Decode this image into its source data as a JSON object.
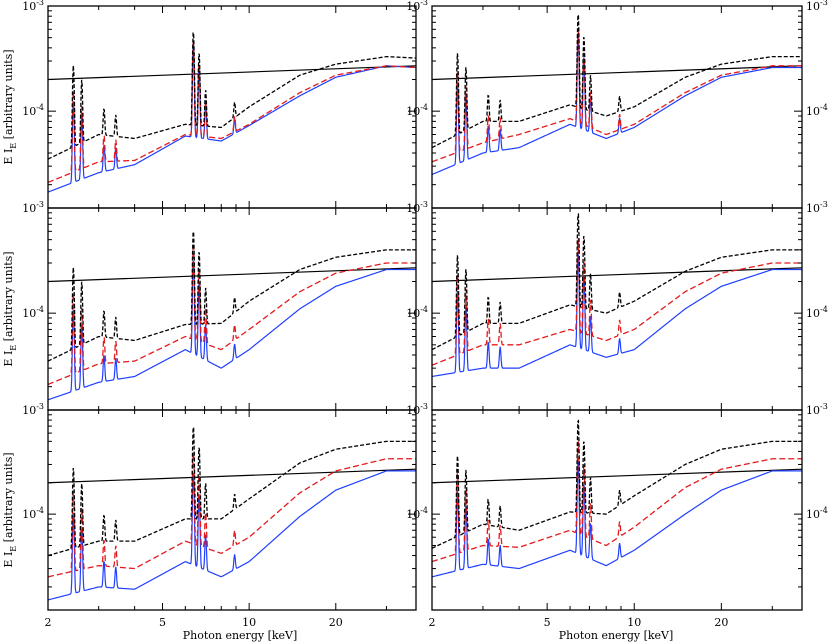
{
  "chart_data": {
    "type": "line",
    "layout": "3 rows x 2 columns, shared axes",
    "xlabel": "Photon energy [keV]",
    "ylabel_main": "E I",
    "ylabel_sub": "E",
    "ylabel_unit": "[arbitrary units]",
    "xscale": "log",
    "yscale": "log",
    "xlim": [
      2,
      38
    ],
    "ylim": [
      1.2e-05,
      0.001
    ],
    "x_ticks": [
      {
        "value": 2,
        "label": "2"
      },
      {
        "value": 5,
        "label": "5"
      },
      {
        "value": 10,
        "label": "10"
      },
      {
        "value": 20,
        "label": "20"
      }
    ],
    "y_ticks": [
      {
        "value": 0.0001,
        "mantissa": "10",
        "exponent": "-4"
      },
      {
        "value": 0.001,
        "mantissa": "10",
        "exponent": "-3"
      }
    ],
    "grid": false,
    "legend": "none",
    "colors": {
      "black": "#000000",
      "red": "#e41a1c",
      "blue": "#1f3fff"
    },
    "incident_continuum": {
      "x": [
        2,
        38
      ],
      "y": [
        0.0002,
        0.00027
      ]
    },
    "panels": [
      {
        "row": 0,
        "col": 0,
        "black_x": [
          2,
          3,
          4,
          6,
          8,
          10,
          15,
          20,
          30,
          38
        ],
        "black_y": [
          3.5e-05,
          6e-05,
          5.5e-05,
          7.5e-05,
          7e-05,
          0.00011,
          0.00022,
          0.00028,
          0.00033,
          0.00032
        ],
        "red_x": [
          2,
          3,
          4,
          6,
          8,
          10,
          15,
          20,
          30,
          38
        ],
        "red_y": [
          2.1e-05,
          3.3e-05,
          3.4e-05,
          6e-05,
          5.5e-05,
          7.5e-05,
          0.00015,
          0.00022,
          0.00027,
          0.00026
        ],
        "blue_x": [
          2,
          3,
          4,
          6,
          8,
          10,
          15,
          20,
          30,
          38
        ],
        "blue_y": [
          1.7e-05,
          2.6e-05,
          3.1e-05,
          5.8e-05,
          5.2e-05,
          7.3e-05,
          0.00014,
          0.00021,
          0.00027,
          0.00026
        ]
      },
      {
        "row": 0,
        "col": 1,
        "black_x": [
          2,
          3,
          4,
          6,
          8,
          10,
          15,
          20,
          30,
          38
        ],
        "black_y": [
          4.5e-05,
          8e-05,
          8e-05,
          0.000115,
          9e-05,
          0.00011,
          0.00021,
          0.00028,
          0.00033,
          0.00033
        ],
        "red_x": [
          2,
          3,
          4,
          6,
          8,
          10,
          15,
          20,
          30,
          38
        ],
        "red_y": [
          3.3e-05,
          5e-05,
          6e-05,
          8.5e-05,
          6e-05,
          7.5e-05,
          0.00015,
          0.00022,
          0.00027,
          0.00027
        ],
        "blue_x": [
          2,
          3,
          4,
          6,
          8,
          10,
          15,
          20,
          30,
          38
        ],
        "blue_y": [
          2.5e-05,
          4e-05,
          4.5e-05,
          7.5e-05,
          5.5e-05,
          7e-05,
          0.00014,
          0.00021,
          0.00026,
          0.00026
        ]
      },
      {
        "row": 1,
        "col": 0,
        "black_x": [
          2,
          3,
          4,
          6,
          8,
          10,
          15,
          20,
          30,
          38
        ],
        "black_y": [
          3.5e-05,
          6e-05,
          5.5e-05,
          7.8e-05,
          8e-05,
          0.00013,
          0.00026,
          0.00034,
          0.0004,
          0.0004
        ],
        "red_x": [
          2,
          3,
          4,
          6,
          8,
          10,
          15,
          20,
          30,
          38
        ],
        "red_y": [
          2.1e-05,
          3.3e-05,
          3.5e-05,
          6e-05,
          4.5e-05,
          7e-05,
          0.00016,
          0.00024,
          0.0003,
          0.0003
        ],
        "blue_x": [
          2,
          3,
          4,
          6,
          8,
          10,
          15,
          20,
          30,
          38
        ],
        "blue_y": [
          1.5e-05,
          2.2e-05,
          2.5e-05,
          4.5e-05,
          3e-05,
          4.5e-05,
          0.00011,
          0.00018,
          0.00026,
          0.00026
        ]
      },
      {
        "row": 1,
        "col": 1,
        "black_x": [
          2,
          3,
          4,
          6,
          8,
          10,
          15,
          20,
          30,
          38
        ],
        "black_y": [
          4.5e-05,
          8e-05,
          8e-05,
          0.00012,
          0.0001,
          0.00013,
          0.00025,
          0.00034,
          0.0004,
          0.0004
        ],
        "red_x": [
          2,
          3,
          4,
          6,
          8,
          10,
          15,
          20,
          30,
          38
        ],
        "red_y": [
          3.2e-05,
          5e-05,
          5e-05,
          7e-05,
          5.5e-05,
          7e-05,
          0.00016,
          0.00024,
          0.0003,
          0.0003
        ],
        "blue_x": [
          2,
          3,
          4,
          6,
          8,
          10,
          15,
          20,
          30,
          38
        ],
        "blue_y": [
          2.5e-05,
          3e-05,
          3e-05,
          5e-05,
          3.8e-05,
          4.5e-05,
          0.00011,
          0.00018,
          0.00026,
          0.00026
        ]
      },
      {
        "row": 2,
        "col": 0,
        "black_x": [
          2,
          3,
          4,
          6,
          8,
          10,
          15,
          20,
          30,
          38
        ],
        "black_y": [
          4e-05,
          5.5e-05,
          5.5e-05,
          9e-05,
          9e-05,
          0.00014,
          0.00031,
          0.00042,
          0.0005,
          0.0005
        ],
        "red_x": [
          2,
          3,
          4,
          6,
          8,
          10,
          15,
          20,
          30,
          38
        ],
        "red_y": [
          2.5e-05,
          3.2e-05,
          3e-05,
          5.5e-05,
          4.2e-05,
          6e-05,
          0.00016,
          0.00026,
          0.00034,
          0.00034
        ],
        "blue_x": [
          2,
          3,
          4,
          6,
          8,
          10,
          15,
          20,
          30,
          38
        ],
        "blue_y": [
          1.5e-05,
          2e-05,
          1.9e-05,
          3.5e-05,
          2.5e-05,
          3.5e-05,
          9.5e-05,
          0.00017,
          0.00026,
          0.00026
        ]
      },
      {
        "row": 2,
        "col": 1,
        "black_x": [
          2,
          3,
          4,
          6,
          8,
          10,
          15,
          20,
          30,
          38
        ],
        "black_y": [
          4.7e-05,
          8e-05,
          7e-05,
          0.000105,
          0.0001,
          0.00015,
          0.0003,
          0.00042,
          0.0005,
          0.0005
        ],
        "red_x": [
          2,
          3,
          4,
          6,
          8,
          10,
          15,
          20,
          30,
          38
        ],
        "red_y": [
          3.5e-05,
          5e-05,
          4.8e-05,
          7e-05,
          5e-05,
          7.5e-05,
          0.00018,
          0.00027,
          0.00034,
          0.00034
        ],
        "blue_x": [
          2,
          3,
          4,
          6,
          8,
          10,
          15,
          20,
          30,
          38
        ],
        "blue_y": [
          2.5e-05,
          3.3e-05,
          3e-05,
          4.5e-05,
          3.2e-05,
          4.5e-05,
          0.0001,
          0.00017,
          0.00026,
          0.00026
        ]
      }
    ],
    "emission_lines": [
      {
        "energy": 2.45,
        "peak_factor": 6
      },
      {
        "energy": 2.62,
        "peak_factor": 4
      },
      {
        "energy": 3.13,
        "peak_factor": 1.8
      },
      {
        "energy": 3.44,
        "peak_factor": 1.6
      },
      {
        "energy": 6.4,
        "peak_factor": 8
      },
      {
        "energy": 6.7,
        "peak_factor": 5
      },
      {
        "energy": 7.06,
        "peak_factor": 2.2
      },
      {
        "energy": 8.9,
        "peak_factor": 1.4
      }
    ]
  }
}
